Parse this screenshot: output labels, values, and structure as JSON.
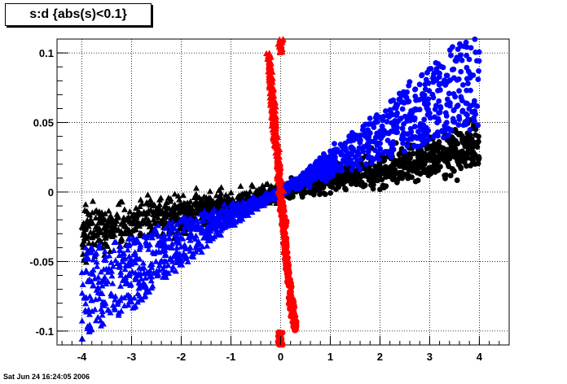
{
  "title": "s:d {abs(s)<0.1}",
  "timestamp": "Sat Jun 24 16:24:05 2006",
  "chart_data": {
    "type": "scatter",
    "title": "s:d {abs(s)<0.1}",
    "xlabel": "",
    "ylabel": "",
    "xlim": [
      -4.5,
      4.6
    ],
    "ylim": [
      -0.11,
      0.11
    ],
    "x_ticks": [
      -4,
      -3,
      -2,
      -1,
      0,
      1,
      2,
      3,
      4
    ],
    "x_tick_labels": [
      "-4",
      "-3",
      "-2",
      "-1",
      "0",
      "1",
      "2",
      "3",
      "4"
    ],
    "y_ticks": [
      -0.1,
      -0.05,
      0,
      0.05,
      0.1
    ],
    "y_tick_labels": [
      "-0.1",
      "-0.05",
      "0",
      "0.05",
      "0.1"
    ],
    "grid": true,
    "series": [
      {
        "color": "#000000",
        "marker_left": "triangle",
        "marker_right": "circle",
        "description_points": [
          {
            "x": -4.0,
            "y": -0.03
          },
          {
            "x": -3.0,
            "y": -0.022
          },
          {
            "x": -2.0,
            "y": -0.016
          },
          {
            "x": -1.0,
            "y": -0.008
          },
          {
            "x": 0.0,
            "y": 0.0
          },
          {
            "x": 1.0,
            "y": 0.009
          },
          {
            "x": 2.0,
            "y": 0.017
          },
          {
            "x": 3.0,
            "y": 0.026
          },
          {
            "x": 4.0,
            "y": 0.033
          }
        ]
      },
      {
        "color": "#0000ff",
        "marker_left": "triangle",
        "marker_right": "circle",
        "description_points": [
          {
            "x": -4.0,
            "y": -0.09
          },
          {
            "x": -3.0,
            "y": -0.07
          },
          {
            "x": -2.0,
            "y": -0.045
          },
          {
            "x": -1.0,
            "y": -0.02
          },
          {
            "x": 0.0,
            "y": 0.0
          },
          {
            "x": 1.0,
            "y": 0.025
          },
          {
            "x": 2.0,
            "y": 0.05
          },
          {
            "x": 3.0,
            "y": 0.075
          },
          {
            "x": 4.0,
            "y": 0.1
          }
        ]
      },
      {
        "color": "#ff0000",
        "marker_left": "triangle",
        "marker_right": "circle",
        "description_points": [
          {
            "x": -0.25,
            "y": 0.1
          },
          {
            "x": -0.15,
            "y": 0.06
          },
          {
            "x": -0.05,
            "y": 0.02
          },
          {
            "x": 0.0,
            "y": 0.0
          },
          {
            "x": 0.05,
            "y": -0.02
          },
          {
            "x": 0.15,
            "y": -0.06
          },
          {
            "x": 0.3,
            "y": -0.1
          }
        ]
      }
    ]
  }
}
